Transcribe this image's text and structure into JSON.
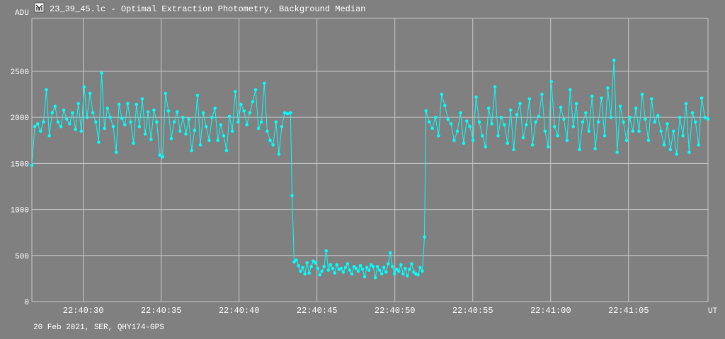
{
  "chart_data": {
    "type": "line",
    "title": "23_39_45.lc - Optimal Extraction Photometry, Background Median",
    "ylabel": "ADU",
    "xlabel": "UT",
    "footer": "20 Feb 2021, SER, QHY174-GPS",
    "icon": "lightcurve-icon",
    "ylim": [
      0,
      3075
    ],
    "yticks": [
      0,
      500,
      1000,
      1500,
      2000,
      2500
    ],
    "ytick_labels": [
      "0",
      "500",
      "1000",
      "1500",
      "2000",
      "2500"
    ],
    "xlim_seconds_after_22_40": [
      26.7,
      70.1
    ],
    "xticks_seconds": [
      30,
      35,
      40,
      45,
      50,
      55,
      60,
      65
    ],
    "xtick_labels": [
      "22:40:30",
      "22:40:35",
      "22:40:40",
      "22:40:45",
      "22:40:50",
      "22:40:55",
      "22:41:00",
      "22:41:05"
    ],
    "grid": true,
    "series_color": "#00ffff",
    "segments": [
      {
        "t_start": 26.7,
        "t_end": 43.3,
        "values": [
          1480,
          1900,
          1930,
          1850,
          1950,
          2300,
          1800,
          2050,
          2120,
          1950,
          1900,
          2080,
          1980,
          1930,
          2050,
          1870,
          2150,
          1850,
          2330,
          2000,
          2260,
          2050,
          1950,
          1730,
          2480,
          1880,
          2100,
          2000,
          1900,
          1620,
          2140,
          1990,
          1920,
          2150,
          1950,
          1720,
          2140,
          1900,
          2200,
          1820,
          2060,
          1760,
          2080,
          1950,
          1590,
          1570,
          2260,
          2070,
          1770,
          1950,
          2060,
          1850,
          2000,
          1820,
          1980,
          1640,
          1860,
          2240,
          1700,
          2050,
          1900,
          1750,
          2000,
          2100,
          1750,
          1920,
          1800,
          1640,
          2010,
          1850,
          2280,
          1950,
          2140,
          2070,
          1920,
          2050,
          2170,
          2300,
          1880,
          1950,
          2370,
          1850,
          1750,
          1700,
          1950,
          1600,
          1900,
          2050,
          2040,
          2050
        ]
      },
      {
        "t_start": 43.4,
        "t_end": 51.9,
        "values": [
          1150,
          430,
          450,
          390,
          330,
          370,
          300,
          420,
          310,
          380,
          440,
          420,
          360,
          290,
          330,
          380,
          550,
          340,
          400,
          360,
          310,
          400,
          350,
          360,
          320,
          370,
          410,
          340,
          300,
          380,
          360,
          330,
          390,
          350,
          270,
          370,
          340,
          400,
          380,
          260,
          380,
          340,
          300,
          370,
          320,
          410,
          530,
          380,
          300,
          350,
          330,
          400,
          300,
          360,
          280,
          350,
          410,
          320,
          300,
          290,
          370,
          330,
          700
        ]
      },
      {
        "t_start": 52.0,
        "t_end": 70.1,
        "values": [
          2070,
          1950,
          1880,
          2000,
          1800,
          2250,
          2130,
          1980,
          1930,
          1750,
          1850,
          2050,
          1720,
          1960,
          1900,
          1750,
          2220,
          1950,
          1800,
          1680,
          2100,
          1930,
          2330,
          1800,
          2000,
          1920,
          1720,
          2080,
          1650,
          2030,
          2150,
          1780,
          1920,
          2200,
          1700,
          1950,
          2010,
          2250,
          1850,
          1680,
          2390,
          1900,
          1800,
          2110,
          1980,
          1750,
          2300,
          1900,
          2150,
          1650,
          1950,
          2050,
          1850,
          2230,
          1660,
          1950,
          2210,
          1800,
          2320,
          2000,
          2620,
          1620,
          2120,
          1950,
          1750,
          2000,
          1850,
          2100,
          1850,
          2250,
          1980,
          1750,
          2200,
          1950,
          2020,
          1850,
          1700,
          1930,
          1650,
          1850,
          1600,
          2000,
          1800,
          2150,
          1620,
          2050,
          1950,
          1700,
          2210,
          2000,
          1980
        ]
      }
    ]
  }
}
